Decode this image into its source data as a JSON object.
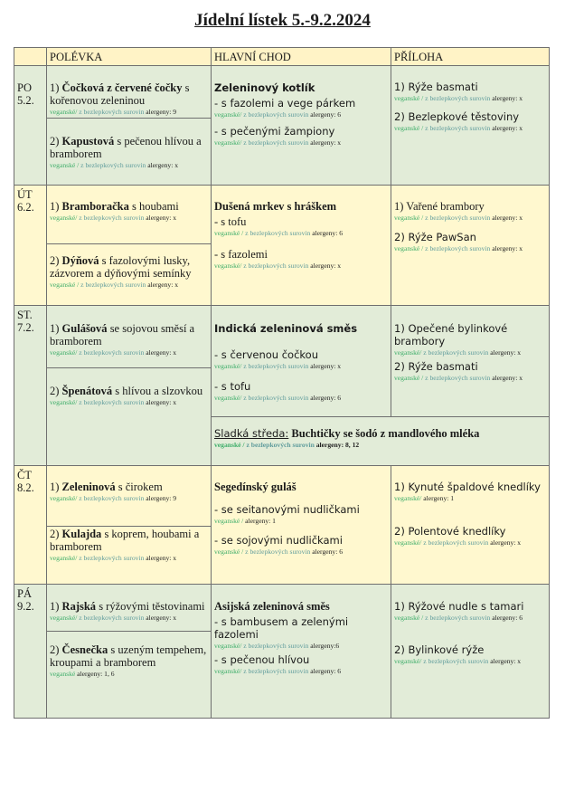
{
  "title": "Jídelní lístek 5.-9.2.2024",
  "colors": {
    "row_green": "#e2ecd8",
    "row_yellow": "#fff8cf",
    "header": "#fff3c6",
    "vegan": "#3fae6a",
    "gluten_free": "#5f9c9c"
  },
  "headers": [
    "POLÉVKA",
    "HLAVNÍ CHOD",
    "PŘÍLOHA"
  ],
  "days": [
    {
      "name": "PO",
      "date": "5.2.",
      "soups": [
        {
          "num": "1) ",
          "bold": "Čočková z červené čočky",
          "rest": " s kořenovou zeleninou",
          "tags": {
            "vegan": "veganské/ ",
            "gf": "z bezlepkových surovin ",
            "al": "alergeny: 9"
          }
        },
        {
          "num": "2) ",
          "bold": "Kapustová",
          "rest": " s pečenou hlívou a bramborem",
          "tags": {
            "vegan": "veganské / ",
            "gf": "z bezlepkových surovin ",
            "al": "alergeny: x"
          }
        }
      ],
      "main": {
        "title": "Zeleninový kotlík",
        "options": [
          {
            "text": "- s fazolemi a vege párkem",
            "tags": {
              "vegan": "veganské/ ",
              "gf": "z bezlepkových surovin ",
              "al": "alergeny: 6"
            }
          },
          {
            "text": "- s pečenými žampiony",
            "tags": {
              "vegan": "veganské/ ",
              "gf": "z bezlepkových surovin ",
              "al": "alergeny: x"
            }
          }
        ]
      },
      "sides": [
        {
          "text": "1) Rýže basmati",
          "tags": {
            "vegan": "veganské / ",
            "gf": "z bezlepkových surovin ",
            "al": "alergeny: x"
          }
        },
        {
          "text": "2) Bezlepkové těstoviny",
          "tags": {
            "vegan": "veganské / ",
            "gf": "z bezlepkových surovin ",
            "al": "alergeny: x"
          }
        }
      ]
    },
    {
      "name": "ÚT",
      "date": "6.2.",
      "soups": [
        {
          "num": "1) ",
          "bold": "Bramboračka",
          "rest": " s houbami",
          "tags": {
            "vegan": "veganské/ ",
            "gf": "z bezlepkových surovin ",
            "al": "alergeny: x"
          }
        },
        {
          "num": "2) ",
          "bold": "Dýňová",
          "rest": " s fazolovými lusky, zázvorem a dýňovými semínky",
          "tags": {
            "vegan": "veganské / ",
            "gf": "z bezlepkových surovin ",
            "al": "alergeny: x"
          }
        }
      ],
      "main": {
        "title": "Dušená mrkev s hráškem",
        "options": [
          {
            "text": "- s tofu",
            "tags": {
              "vegan": "veganské / ",
              "gf": "z bezlepkových surovin  ",
              "al": "alergeny: 6"
            }
          },
          {
            "text": "- s fazolemi",
            "tags": {
              "vegan": "veganské/ ",
              "gf": "z bezlepkových surovin ",
              "al": "alergeny: x"
            }
          }
        ]
      },
      "sides": [
        {
          "text": "1) Vařené brambory",
          "tags": {
            "vegan": "veganské / ",
            "gf": "z bezlepkových surovin ",
            "al": "alergeny: x"
          }
        },
        {
          "text": "2) Rýže PawSan",
          "tags": {
            "vegan": "veganské / ",
            "gf": "z bezlepkových surovin ",
            "al": "alergeny: x"
          }
        }
      ]
    },
    {
      "name": "ST.",
      "date": "7.2.",
      "soups": [
        {
          "num": "1) ",
          "bold": "Gulášová",
          "rest": " se sojovou směsí a bramborem",
          "tags": {
            "vegan": "veganské/ ",
            "gf": "z bezlepkových surovin ",
            "al": "alergeny: x"
          }
        },
        {
          "num": "2) ",
          "bold": "Špenátová",
          "rest": " s hlívou a slzovkou",
          "tags": {
            "vegan": "veganské/ ",
            "gf": "z bezlepkových surovin ",
            "al": "alergeny: x"
          }
        }
      ],
      "main": {
        "title": "Indická zeleninová směs",
        "options": [
          {
            "text": "- s červenou čočkou",
            "tags": {
              "vegan": "veganské/ ",
              "gf": "z bezlepkových surovin ",
              "al": "alergeny: x"
            }
          },
          {
            "text": "- s tofu",
            "tags": {
              "vegan": "veganské/ ",
              "gf": "z bezlepkových surovin ",
              "al": "alergeny: 6"
            }
          }
        ]
      },
      "sides": [
        {
          "text": "1) Opečené bylinkové brambory",
          "tags": {
            "vegan": "veganské/ ",
            "gf": "z bezlepkových surovin ",
            "al": "alergeny: x"
          }
        },
        {
          "text": "2) Rýže basmati",
          "tags": {
            "vegan": "veganské / ",
            "gf": "z bezlepkových surovin ",
            "al": "alergeny: x"
          }
        }
      ],
      "sweet": {
        "label": "Sladká středa:",
        "text": "  Buchtičky se šodó z mandlového mléka",
        "tags": {
          "vegan": "veganské / ",
          "gf": "z bezlepkových surovin  ",
          "al": "alergeny: 8, 12"
        }
      }
    },
    {
      "name": "ČT",
      "date": "8.2.",
      "soups": [
        {
          "num": "1) ",
          "bold": "Zeleninová",
          "rest": " s čirokem",
          "tags": {
            "vegan": "veganské/ ",
            "gf": "z bezlepkových surovin ",
            "al": "alergeny: 9"
          }
        },
        {
          "num": "2)  ",
          "bold": "Kulajda",
          "rest": " s koprem, houbami a bramborem",
          "tags": {
            "vegan": "veganské/ ",
            "gf": "z bezlepkových surovin ",
            "al": "alergeny: x"
          }
        }
      ],
      "main": {
        "title": "Segedínský guláš",
        "options": [
          {
            "text": "- se seitanovými nudličkami",
            "tags": {
              "vegan": "veganské /   ",
              "gf": "",
              "al": "alergeny: 1"
            }
          },
          {
            "text": "- se sojovými nudličkami",
            "tags": {
              "vegan": "veganské / ",
              "gf": "z bezlepkových surovin  ",
              "al": "alergeny: 6"
            }
          }
        ]
      },
      "sides": [
        {
          "text": "1) Kynuté špaldové knedlíky",
          "tags": {
            "vegan": "veganské/  ",
            "gf": "",
            "al": "alergeny: 1"
          }
        },
        {
          "text": "2) Polentové knedlíky",
          "tags": {
            "vegan": "veganské/ ",
            "gf": "z bezlepkových surovin ",
            "al": "alergeny: x"
          }
        }
      ]
    },
    {
      "name": "PÁ",
      "date": "9.2.",
      "soups": [
        {
          "num": "1) ",
          "bold": "Rajská",
          "rest": " s rýžovými těstovinami",
          "tags": {
            "vegan": "veganské/ ",
            "gf": "z bezlepkových surovin ",
            "al": "alergeny: x"
          }
        },
        {
          "num": "2) ",
          "bold": "Česnečka",
          "rest": " s uzeným tempehem, kroupami a bramborem",
          "tags": {
            "vegan": "veganské  ",
            "gf": "",
            "al": "alergeny: 1, 6"
          }
        }
      ],
      "main": {
        "title": "Asijská zeleninová směs",
        "options": [
          {
            "text": "-  s bambusem a zelenými fazolemi",
            "tags": {
              "vegan": "veganské/ ",
              "gf": "z bezlepkových surovin ",
              "al": "alergeny:6"
            }
          },
          {
            "text": "- s pečenou hlívou",
            "tags": {
              "vegan": "veganské/ ",
              "gf": "z bezlepkových surovin ",
              "al": "alergeny: 6"
            }
          }
        ]
      },
      "sides": [
        {
          "text": "1) Rýžové nudle s tamari",
          "tags": {
            "vegan": "veganské / ",
            "gf": "z bezlepkových surovin  ",
            "al": "alergeny: 6"
          }
        },
        {
          "text": "2) Bylinkové rýže",
          "tags": {
            "vegan": "veganské/ ",
            "gf": "z bezlepkových surovin ",
            "al": "alergeny: x"
          }
        }
      ]
    }
  ]
}
